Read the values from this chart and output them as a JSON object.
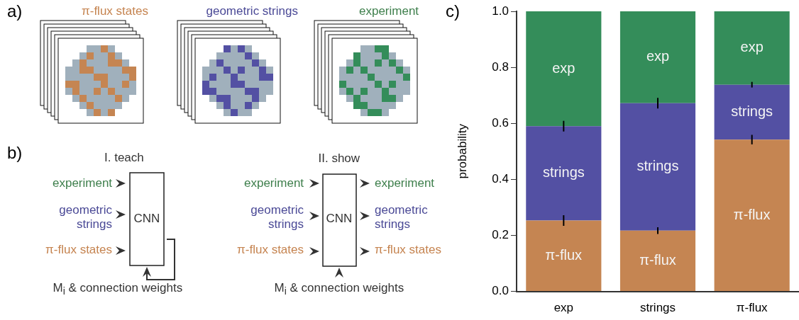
{
  "chart_data": [
    {
      "type": "other",
      "title": "a)",
      "annotations": [
        "π-flux states",
        "geometric strings",
        "experiment"
      ]
    },
    {
      "type": "other",
      "title": "b)",
      "annotations": [
        "I. teach",
        "experiment",
        "geometric strings",
        "π-flux states",
        "CNN",
        "M$_{i}$ & connection weights",
        "II. show",
        "experiment",
        "geometric strings",
        "π-flux states",
        "CNN",
        "experiment",
        "geometric strings",
        "π-flux states",
        "M$_{i}$ & connection weights"
      ]
    },
    {
      "type": "bar",
      "title": "c)",
      "ylabel": "probability",
      "stacked": true,
      "categories": [
        "exp",
        "strings",
        "π-flux"
      ],
      "series": [
        {
          "name": "π-flux",
          "color": "#c58552",
          "values": [
            0.253,
            0.217,
            0.542
          ],
          "errors": [
            0.019,
            0.012,
            0.017
          ]
        },
        {
          "name": "strings",
          "color": "#5350a3",
          "values": [
            0.337,
            0.455,
            0.196
          ],
          "errors": [
            0.019,
            0.019,
            0.01
          ]
        },
        {
          "name": "exp",
          "color": "#348d5a",
          "values": [
            0.41,
            0.328,
            0.262
          ]
        }
      ],
      "ylim": [
        0,
        1
      ],
      "yticks": [
        {
          "value": 0,
          "label": "0.0"
        },
        {
          "value": 0.2,
          "label": "0.2"
        },
        {
          "value": 0.4,
          "label": "0.4"
        },
        {
          "value": 0.6,
          "label": "0.6"
        },
        {
          "value": 0.8,
          "label": "0.8"
        },
        {
          "value": 1,
          "label": "1.0"
        }
      ],
      "grid": false,
      "legend": false
    }
  ]
}
